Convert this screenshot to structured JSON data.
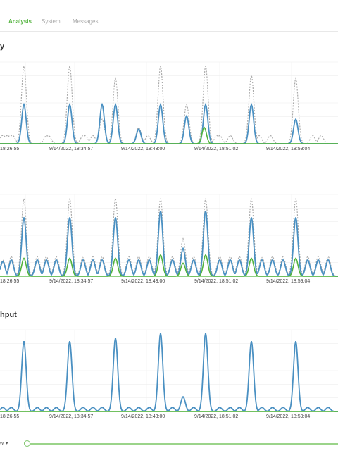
{
  "tabs": [
    {
      "label": "Analysis",
      "active": true
    },
    {
      "label": "System",
      "active": false
    },
    {
      "label": "Messages",
      "active": false
    }
  ],
  "sections": [
    {
      "title": "y"
    },
    {
      "title": ""
    },
    {
      "title": "hput"
    }
  ],
  "footer": {
    "zoom_label": "w",
    "zoom_caret": "▾",
    "slider_value": 0.0
  },
  "colors": {
    "accent": "#52b33d",
    "series_blue": "#4a90c2",
    "series_grey": "#aaaaaa",
    "series_green": "#52b33d",
    "grid": "#eeeeee"
  },
  "chart_data": [
    {
      "type": "line",
      "x_ticks": [
        "18:26:55",
        "9/14/2022, 18:34:57",
        "9/14/2022, 18:43:00",
        "9/14/2022, 18:51:02",
        "9/14/2022, 18:59:04"
      ],
      "ylim": [
        0,
        100
      ],
      "series": [
        {
          "style": "dashed-grey",
          "peaks": [
            [
              3,
              10
            ],
            [
              4,
              10
            ],
            [
              8,
              10
            ],
            [
              10,
              10
            ],
            [
              14,
              10
            ],
            [
              16,
              10
            ],
            [
              18,
              10
            ],
            [
              34,
              95
            ],
            [
              66,
              10
            ],
            [
              69,
              10
            ],
            [
              99,
              95
            ],
            [
              118,
              10
            ],
            [
              121,
              10
            ],
            [
              132,
              10
            ],
            [
              145,
              30
            ],
            [
              164,
              80
            ],
            [
              197,
              20
            ],
            [
              210,
              10
            ],
            [
              228,
              95
            ],
            [
              265,
              48
            ],
            [
              292,
              95
            ],
            [
              308,
              10
            ],
            [
              312,
              10
            ],
            [
              327,
              10
            ],
            [
              357,
              84
            ],
            [
              368,
              10
            ],
            [
              384,
              10
            ],
            [
              420,
              80
            ],
            [
              444,
              10
            ],
            [
              456,
              10
            ]
          ]
        },
        {
          "style": "solid-blue",
          "peaks": [
            [
              34,
              48
            ],
            [
              99,
              48
            ],
            [
              145,
              48
            ],
            [
              164,
              48
            ],
            [
              197,
              18
            ],
            [
              228,
              48
            ],
            [
              265,
              34
            ],
            [
              292,
              48
            ],
            [
              357,
              48
            ],
            [
              420,
              30
            ]
          ]
        },
        {
          "style": "solid-green",
          "peaks": [
            [
              290,
              20
            ]
          ]
        }
      ]
    },
    {
      "type": "line",
      "x_ticks": [
        "18:26:55",
        "9/14/2022, 18:34:57",
        "9/14/2022, 18:43:00",
        "9/14/2022, 18:51:02",
        "9/14/2022, 18:59:04"
      ],
      "ylim": [
        0,
        100
      ],
      "series": [
        {
          "style": "dashed-grey",
          "peaks": [
            [
              4,
              20
            ],
            [
              16,
              24
            ],
            [
              34,
              95
            ],
            [
              53,
              24
            ],
            [
              66,
              24
            ],
            [
              80,
              24
            ],
            [
              99,
              95
            ],
            [
              118,
              24
            ],
            [
              132,
              24
            ],
            [
              145,
              24
            ],
            [
              164,
              95
            ],
            [
              183,
              24
            ],
            [
              197,
              24
            ],
            [
              212,
              24
            ],
            [
              228,
              95
            ],
            [
              245,
              24
            ],
            [
              260,
              46
            ],
            [
              275,
              24
            ],
            [
              292,
              95
            ],
            [
              312,
              24
            ],
            [
              327,
              24
            ],
            [
              340,
              24
            ],
            [
              357,
              95
            ],
            [
              372,
              24
            ],
            [
              387,
              24
            ],
            [
              402,
              24
            ],
            [
              420,
              95
            ],
            [
              437,
              24
            ],
            [
              452,
              24
            ],
            [
              466,
              24
            ]
          ]
        },
        {
          "style": "solid-blue",
          "peaks": [
            [
              4,
              18
            ],
            [
              16,
              20
            ],
            [
              34,
              72
            ],
            [
              53,
              20
            ],
            [
              66,
              20
            ],
            [
              80,
              20
            ],
            [
              99,
              72
            ],
            [
              118,
              20
            ],
            [
              132,
              20
            ],
            [
              145,
              20
            ],
            [
              164,
              72
            ],
            [
              183,
              20
            ],
            [
              197,
              20
            ],
            [
              212,
              20
            ],
            [
              228,
              80
            ],
            [
              245,
              20
            ],
            [
              260,
              34
            ],
            [
              275,
              20
            ],
            [
              292,
              80
            ],
            [
              312,
              20
            ],
            [
              327,
              20
            ],
            [
              340,
              20
            ],
            [
              357,
              72
            ],
            [
              372,
              20
            ],
            [
              387,
              20
            ],
            [
              402,
              20
            ],
            [
              420,
              72
            ],
            [
              437,
              20
            ],
            [
              452,
              20
            ],
            [
              466,
              20
            ]
          ]
        },
        {
          "style": "solid-green",
          "peaks": [
            [
              34,
              22
            ],
            [
              99,
              22
            ],
            [
              164,
              22
            ],
            [
              228,
              26
            ],
            [
              260,
              16
            ],
            [
              292,
              26
            ],
            [
              357,
              22
            ],
            [
              420,
              22
            ]
          ]
        }
      ]
    },
    {
      "type": "line",
      "x_ticks": [
        "18:26:55",
        "9/14/2022, 18:34:57",
        "9/14/2022, 18:43:00",
        "9/14/2022, 18:51:02",
        "9/14/2022, 18:59:04"
      ],
      "ylim": [
        0,
        100
      ],
      "series": [
        {
          "style": "solid-blue",
          "peaks": [
            [
              4,
              5
            ],
            [
              16,
              5
            ],
            [
              34,
              86
            ],
            [
              53,
              5
            ],
            [
              66,
              5
            ],
            [
              80,
              5
            ],
            [
              99,
              86
            ],
            [
              118,
              5
            ],
            [
              132,
              5
            ],
            [
              145,
              5
            ],
            [
              164,
              90
            ],
            [
              183,
              5
            ],
            [
              197,
              5
            ],
            [
              212,
              5
            ],
            [
              228,
              96
            ],
            [
              245,
              5
            ],
            [
              260,
              18
            ],
            [
              275,
              5
            ],
            [
              292,
              96
            ],
            [
              312,
              5
            ],
            [
              327,
              5
            ],
            [
              340,
              5
            ],
            [
              357,
              86
            ],
            [
              372,
              5
            ],
            [
              387,
              5
            ],
            [
              402,
              5
            ],
            [
              420,
              86
            ],
            [
              437,
              5
            ],
            [
              452,
              5
            ],
            [
              466,
              5
            ]
          ]
        },
        {
          "style": "solid-green",
          "peaks": []
        }
      ]
    }
  ]
}
